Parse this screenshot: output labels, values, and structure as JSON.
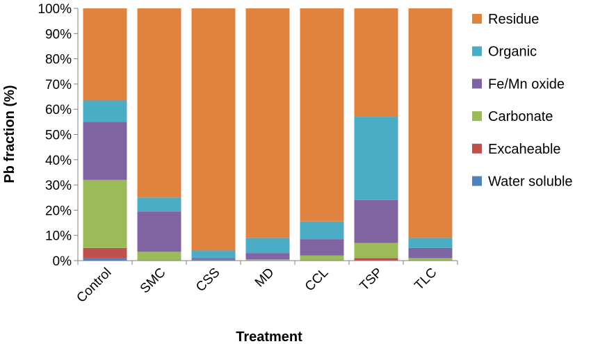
{
  "chart_data": {
    "type": "bar",
    "stacked": true,
    "percent_stacked": true,
    "xlabel": "Treatment",
    "ylabel": "Pb fraction (%)",
    "categories": [
      "Control",
      "SMC",
      "CSS",
      "MD",
      "CCL",
      "TSP",
      "TLC"
    ],
    "ylim": [
      0,
      100
    ],
    "yticks": [
      "0%",
      "10%",
      "20%",
      "30%",
      "40%",
      "50%",
      "60%",
      "70%",
      "80%",
      "90%",
      "100%"
    ],
    "grid": false,
    "legend_position": "right",
    "series": [
      {
        "name": "Water soluble",
        "color": "#4F81BD",
        "values": [
          1,
          0,
          0.5,
          0.2,
          0,
          0,
          0
        ]
      },
      {
        "name": "Excaheable",
        "color": "#C0504D",
        "values": [
          4,
          0,
          0,
          0,
          0,
          1,
          0
        ]
      },
      {
        "name": "Carbonate",
        "color": "#9BBB59",
        "values": [
          27,
          3.5,
          0,
          0.3,
          2,
          6,
          1
        ]
      },
      {
        "name": "Fe/Mn oxide",
        "color": "#8064A2",
        "values": [
          23,
          16,
          0.5,
          2.5,
          6.5,
          17,
          4
        ]
      },
      {
        "name": "Organic",
        "color": "#4BACC6",
        "values": [
          8.5,
          5.5,
          3,
          6,
          7,
          33,
          4
        ]
      },
      {
        "name": "Residue",
        "color": "#E0833F",
        "values": [
          36.5,
          75,
          96,
          91,
          84.5,
          43,
          91
        ]
      }
    ]
  }
}
